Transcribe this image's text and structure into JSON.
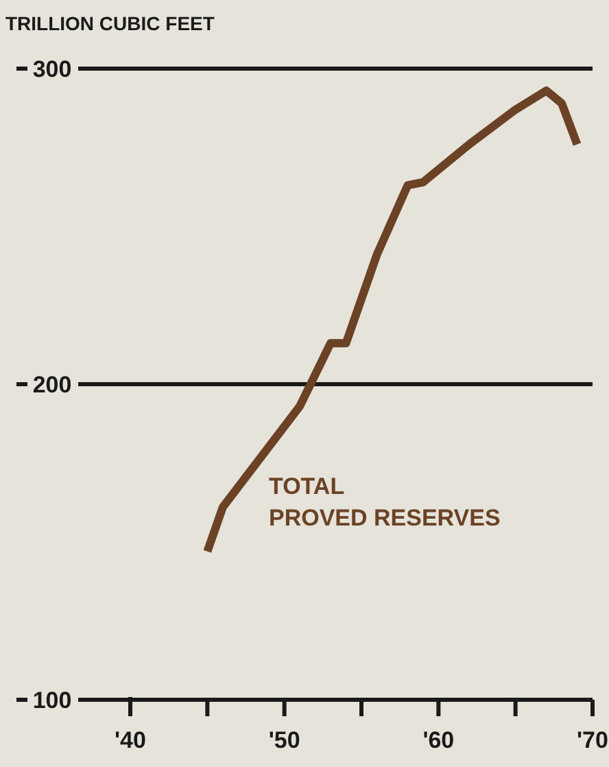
{
  "chart_data": {
    "type": "line",
    "ylabel": "TRILLION CUBIC FEET",
    "x": [
      1945,
      1946,
      1951,
      1953,
      1954,
      1956,
      1958,
      1959,
      1962,
      1965,
      1967,
      1968,
      1969
    ],
    "series": [
      {
        "color": "#6b4226",
        "values": [
          147,
          161,
          193,
          213,
          213,
          241,
          263,
          264,
          276,
          287,
          293,
          289,
          276
        ]
      }
    ],
    "annotations": [
      "TOTAL\nPROVED RESERVES"
    ],
    "xlim": [
      1940,
      1970
    ],
    "ylim": [
      100,
      300
    ],
    "xticks": [
      {
        "value": 1940,
        "label": "'40"
      },
      {
        "value": 1945,
        "label": null
      },
      {
        "value": 1950,
        "label": "'50"
      },
      {
        "value": 1955,
        "label": null
      },
      {
        "value": 1960,
        "label": "'60"
      },
      {
        "value": 1965,
        "label": null
      },
      {
        "value": 1970,
        "label": "'70"
      }
    ],
    "yticks": [
      100,
      200,
      300
    ],
    "grid": "y",
    "marker": "none",
    "line_style": "solid"
  }
}
